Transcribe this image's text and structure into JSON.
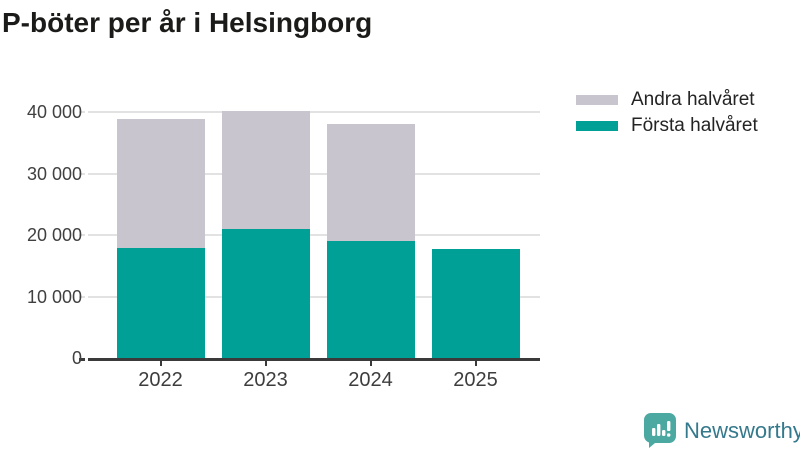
{
  "title": "P-böter per år i Helsingborg",
  "legend": {
    "items": [
      {
        "label": "Andra halvåret",
        "color": "#c8c5ce"
      },
      {
        "label": "Första halvåret",
        "color": "#00a096"
      }
    ]
  },
  "branding": {
    "name": "Newsworthy",
    "icon": "newsworthy-speech-bubble-chart-icon",
    "icon_color": "#4ba9a1",
    "text_color": "#35798c"
  },
  "chart_data": {
    "type": "bar",
    "stacked": true,
    "title": "P-böter per år i Helsingborg",
    "categories": [
      "2022",
      "2023",
      "2024",
      "2025"
    ],
    "series": [
      {
        "name": "Första halvåret",
        "color": "#00a096",
        "values": [
          17900,
          20900,
          19000,
          17800
        ]
      },
      {
        "name": "Andra halvåret",
        "color": "#c8c5ce",
        "values": [
          20900,
          19200,
          19000,
          0
        ]
      }
    ],
    "totals": [
      38800,
      40100,
      38000,
      17800
    ],
    "xlabel": "",
    "ylabel": "",
    "ylim": [
      0,
      40000
    ],
    "yticks": [
      0,
      10000,
      20000,
      30000,
      40000
    ],
    "ytick_labels": [
      "0",
      "10 000",
      "20 000",
      "30 000",
      "40 000"
    ],
    "grid": true,
    "legend_position": "top-right",
    "colors": {
      "grid": "#e2e2e2",
      "axis": "#3a3a3a",
      "tick_text": "#404040",
      "title_text": "#1b1b19"
    }
  }
}
